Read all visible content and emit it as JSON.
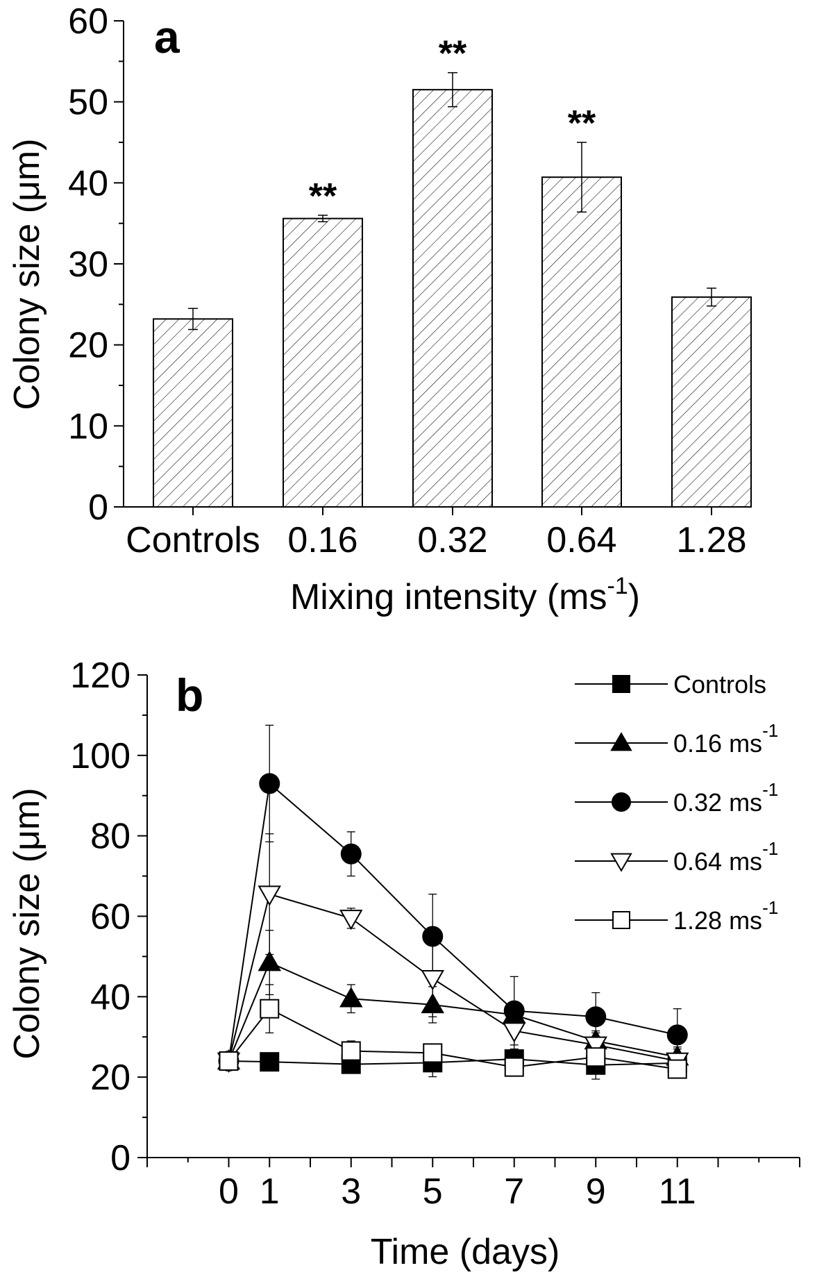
{
  "chart_data": [
    {
      "type": "bar",
      "panel_label": "a",
      "categories": [
        "Controls",
        "0.16",
        "0.32",
        "0.64",
        "1.28"
      ],
      "values": [
        23.2,
        35.6,
        51.5,
        40.7,
        25.9
      ],
      "errors": [
        1.3,
        0.4,
        2.1,
        4.3,
        1.1
      ],
      "annotations": [
        "",
        "**",
        "**",
        "**",
        ""
      ],
      "xlabel": "Mixing intensity (ms",
      "xlabel_sup": "-1",
      "xlabel_close": ")",
      "ylabel": "Colony size (μm)",
      "ylim": [
        0,
        60
      ],
      "yticks": [
        0,
        10,
        20,
        30,
        40,
        50,
        60
      ],
      "bar_fill": "hatched"
    },
    {
      "type": "line",
      "panel_label": "b",
      "x": [
        0,
        1,
        3,
        5,
        7,
        9,
        11
      ],
      "xlabel": "Time (days)",
      "ylabel": "Colony size (μm)",
      "ylim": [
        0,
        120
      ],
      "yticks": [
        0,
        20,
        40,
        60,
        80,
        100,
        120
      ],
      "xlim": [
        -2,
        14
      ],
      "xticks": [
        0,
        1,
        3,
        5,
        7,
        9,
        11
      ],
      "legend_position": "top-right",
      "series": [
        {
          "name": "Controls",
          "unit": "",
          "marker": "square-filled",
          "values": [
            24.0,
            23.8,
            23.2,
            23.6,
            24.5,
            23.0,
            23.5
          ],
          "errors": [
            1.5,
            0.8,
            1.5,
            3.5,
            1.5,
            3.5,
            1.0
          ]
        },
        {
          "name": "0.16 ms",
          "unit": "-1",
          "marker": "triangle-up-filled",
          "values": [
            24.0,
            48.5,
            39.5,
            38.0,
            35.5,
            29.0,
            25.0
          ],
          "errors": [
            1.5,
            8.0,
            3.5,
            4.5,
            3.0,
            2.0,
            2.5
          ]
        },
        {
          "name": "0.32 ms",
          "unit": "-1",
          "marker": "circle-filled",
          "values": [
            24.0,
            93.0,
            75.5,
            55.0,
            36.5,
            35.0,
            30.5
          ],
          "errors": [
            1.5,
            14.5,
            5.5,
            10.5,
            8.5,
            6.0,
            6.5
          ]
        },
        {
          "name": "0.64 ms",
          "unit": "-1",
          "marker": "triangle-down-open",
          "values": [
            24.0,
            65.5,
            59.5,
            44.5,
            31.5,
            28.0,
            24.0
          ],
          "errors": [
            1.5,
            15.0,
            2.5,
            9.5,
            4.5,
            3.5,
            3.0
          ]
        },
        {
          "name": "1.28 ms",
          "unit": "-1",
          "marker": "square-open",
          "values": [
            24.0,
            37.0,
            26.5,
            26.0,
            22.5,
            25.0,
            22.0
          ],
          "errors": [
            1.5,
            6.0,
            2.5,
            2.0,
            1.5,
            1.5,
            2.0
          ]
        }
      ]
    }
  ]
}
